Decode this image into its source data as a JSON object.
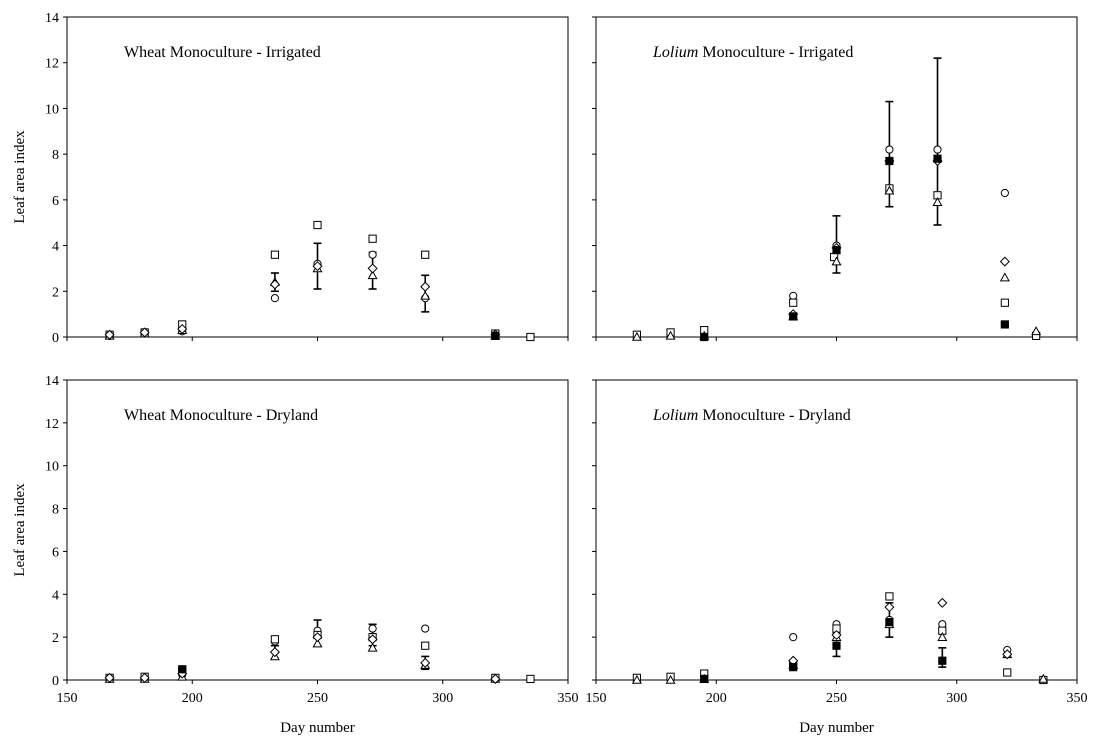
{
  "chart_data": [
    {
      "type": "scatter",
      "title_prefix": "",
      "title_rest": "Wheat Monoculture - Irrigated",
      "ylabel": "Leaf area index",
      "xlabel": "",
      "xlim": [
        150,
        350
      ],
      "ylim": [
        0,
        14
      ],
      "xticks": [
        150,
        200,
        250,
        300,
        350
      ],
      "yticks": [
        0,
        2,
        4,
        6,
        8,
        10,
        12,
        14
      ],
      "show_xticklabels": false,
      "show_yticklabels": true,
      "grid": false,
      "series": [
        {
          "marker": "circle",
          "points": [
            [
              167,
              0.05
            ],
            [
              181,
              0.15
            ],
            [
              196,
              0.25
            ],
            [
              233,
              1.7
            ],
            [
              250,
              3.2
            ],
            [
              272,
              3.6
            ],
            [
              293,
              1.7
            ],
            [
              321,
              0.05
            ]
          ]
        },
        {
          "marker": "square",
          "points": [
            [
              167,
              0.1
            ],
            [
              181,
              0.2
            ],
            [
              196,
              0.55
            ],
            [
              233,
              3.6
            ],
            [
              250,
              4.9
            ],
            [
              272,
              4.3
            ],
            [
              293,
              3.6
            ],
            [
              321,
              0.15
            ],
            [
              335,
              0.0
            ]
          ]
        },
        {
          "marker": "triangle",
          "points": [
            [
              167,
              0.05
            ],
            [
              181,
              0.15
            ],
            [
              196,
              0.3
            ],
            [
              233,
              2.4
            ],
            [
              250,
              3.0
            ],
            [
              272,
              2.7
            ],
            [
              293,
              1.8
            ],
            [
              321,
              0.05
            ]
          ]
        },
        {
          "marker": "diamond",
          "points": [
            [
              167,
              0.1
            ],
            [
              181,
              0.2
            ],
            [
              196,
              0.35
            ],
            [
              233,
              2.3
            ],
            [
              250,
              3.1
            ],
            [
              272,
              3.0
            ],
            [
              293,
              2.2
            ],
            [
              321,
              0.1
            ]
          ]
        },
        {
          "marker": "filled-square",
          "points": [
            [
              321,
              0.05
            ]
          ]
        }
      ],
      "errorbars": [
        {
          "x": 233,
          "low": 2.0,
          "high": 2.8
        },
        {
          "x": 250,
          "low": 2.1,
          "high": 4.1
        },
        {
          "x": 272,
          "low": 2.1,
          "high": 3.7
        },
        {
          "x": 293,
          "low": 1.1,
          "high": 2.7
        }
      ]
    },
    {
      "type": "scatter",
      "title_prefix": "Lolium",
      "title_rest": " Monoculture - Irrigated",
      "ylabel": "",
      "xlabel": "",
      "xlim": [
        150,
        350
      ],
      "ylim": [
        0,
        14
      ],
      "xticks": [
        150,
        200,
        250,
        300,
        350
      ],
      "yticks": [
        0,
        2,
        4,
        6,
        8,
        10,
        12,
        14
      ],
      "show_xticklabels": false,
      "show_yticklabels": false,
      "grid": false,
      "series": [
        {
          "marker": "circle",
          "points": [
            [
              232,
              1.8
            ],
            [
              250,
              4.0
            ],
            [
              272,
              8.2
            ],
            [
              292,
              8.2
            ],
            [
              320,
              6.3
            ]
          ]
        },
        {
          "marker": "square",
          "points": [
            [
              167,
              0.1
            ],
            [
              181,
              0.2
            ],
            [
              195,
              0.3
            ],
            [
              232,
              1.5
            ],
            [
              249,
              3.5
            ],
            [
              272,
              6.5
            ],
            [
              292,
              6.2
            ],
            [
              320,
              1.5
            ],
            [
              333,
              0.05
            ]
          ]
        },
        {
          "marker": "triangle",
          "points": [
            [
              167,
              0.0
            ],
            [
              181,
              0.05
            ],
            [
              195,
              0.05
            ],
            [
              232,
              0.9
            ],
            [
              250,
              3.3
            ],
            [
              272,
              6.4
            ],
            [
              292,
              5.9
            ],
            [
              320,
              2.6
            ],
            [
              333,
              0.25
            ]
          ]
        },
        {
          "marker": "diamond",
          "points": [
            [
              232,
              1.0
            ],
            [
              250,
              3.9
            ],
            [
              272,
              7.7
            ],
            [
              292,
              7.7
            ],
            [
              320,
              3.3
            ]
          ]
        },
        {
          "marker": "filled-square",
          "points": [
            [
              195,
              0.0
            ],
            [
              232,
              0.9
            ],
            [
              250,
              3.8
            ],
            [
              272,
              7.7
            ],
            [
              292,
              7.8
            ],
            [
              320,
              0.55
            ]
          ]
        }
      ],
      "errorbars": [
        {
          "x": 250,
          "low": 2.8,
          "high": 5.3
        },
        {
          "x": 272,
          "low": 5.7,
          "high": 10.3
        },
        {
          "x": 292,
          "low": 4.9,
          "high": 12.2
        },
        {
          "x": 320,
          "low": 0.5,
          "high": 0.6
        }
      ]
    },
    {
      "type": "scatter",
      "title_prefix": "",
      "title_rest": "Wheat Monoculture - Dryland",
      "ylabel": "Leaf area index",
      "xlabel": "Day number",
      "xlim": [
        150,
        350
      ],
      "ylim": [
        0,
        14
      ],
      "xticks": [
        150,
        200,
        250,
        300,
        350
      ],
      "yticks": [
        0,
        2,
        4,
        6,
        8,
        10,
        12,
        14
      ],
      "show_xticklabels": true,
      "show_yticklabels": true,
      "grid": false,
      "series": [
        {
          "marker": "circle",
          "points": [
            [
              167,
              0.05
            ],
            [
              181,
              0.1
            ],
            [
              196,
              0.25
            ],
            [
              233,
              1.8
            ],
            [
              250,
              2.3
            ],
            [
              272,
              2.4
            ],
            [
              293,
              2.4
            ],
            [
              321,
              0.05
            ]
          ]
        },
        {
          "marker": "square",
          "points": [
            [
              167,
              0.1
            ],
            [
              181,
              0.15
            ],
            [
              196,
              0.45
            ],
            [
              233,
              1.9
            ],
            [
              250,
              2.1
            ],
            [
              272,
              2.0
            ],
            [
              293,
              1.6
            ],
            [
              321,
              0.1
            ],
            [
              335,
              0.05
            ]
          ]
        },
        {
          "marker": "triangle",
          "points": [
            [
              167,
              0.05
            ],
            [
              181,
              0.05
            ],
            [
              196,
              0.15
            ],
            [
              233,
              1.1
            ],
            [
              250,
              1.7
            ],
            [
              272,
              1.5
            ],
            [
              293,
              0.7
            ],
            [
              321,
              0.05
            ]
          ]
        },
        {
          "marker": "diamond",
          "points": [
            [
              167,
              0.1
            ],
            [
              181,
              0.1
            ],
            [
              196,
              0.3
            ],
            [
              233,
              1.3
            ],
            [
              250,
              2.0
            ],
            [
              272,
              1.9
            ],
            [
              293,
              0.8
            ],
            [
              321,
              0.05
            ]
          ]
        },
        {
          "marker": "filled-square",
          "points": [
            [
              196,
              0.5
            ]
          ]
        }
      ],
      "errorbars": [
        {
          "x": 233,
          "low": 1.0,
          "high": 1.6
        },
        {
          "x": 250,
          "low": 1.6,
          "high": 2.8
        },
        {
          "x": 272,
          "low": 1.6,
          "high": 2.6
        },
        {
          "x": 293,
          "low": 0.5,
          "high": 1.1
        }
      ]
    },
    {
      "type": "scatter",
      "title_prefix": "Lolium",
      "title_rest": " Monoculture - Dryland",
      "ylabel": "",
      "xlabel": "Day number",
      "xlim": [
        150,
        350
      ],
      "ylim": [
        0,
        14
      ],
      "xticks": [
        150,
        200,
        250,
        300,
        350
      ],
      "yticks": [
        0,
        2,
        4,
        6,
        8,
        10,
        12,
        14
      ],
      "show_xticklabels": true,
      "show_yticklabels": false,
      "grid": false,
      "series": [
        {
          "marker": "circle",
          "points": [
            [
              232,
              2.0
            ],
            [
              250,
              2.6
            ],
            [
              272,
              2.8
            ],
            [
              294,
              2.6
            ],
            [
              321,
              1.4
            ]
          ]
        },
        {
          "marker": "square",
          "points": [
            [
              167,
              0.1
            ],
            [
              181,
              0.15
            ],
            [
              195,
              0.3
            ],
            [
              232,
              0.7
            ],
            [
              250,
              2.4
            ],
            [
              272,
              3.9
            ],
            [
              294,
              2.3
            ],
            [
              321,
              0.35
            ],
            [
              336,
              0.0
            ]
          ]
        },
        {
          "marker": "triangle",
          "points": [
            [
              167,
              0.0
            ],
            [
              181,
              0.0
            ],
            [
              195,
              0.05
            ],
            [
              232,
              0.7
            ],
            [
              250,
              2.0
            ],
            [
              272,
              2.6
            ],
            [
              294,
              2.0
            ],
            [
              321,
              1.2
            ],
            [
              336,
              0.05
            ]
          ]
        },
        {
          "marker": "diamond",
          "points": [
            [
              232,
              0.9
            ],
            [
              250,
              2.1
            ],
            [
              272,
              3.4
            ],
            [
              294,
              3.6
            ],
            [
              321,
              1.2
            ]
          ]
        },
        {
          "marker": "filled-square",
          "points": [
            [
              195,
              0.05
            ],
            [
              232,
              0.6
            ],
            [
              250,
              1.6
            ],
            [
              272,
              2.7
            ],
            [
              294,
              0.9
            ]
          ]
        }
      ],
      "errorbars": [
        {
          "x": 250,
          "low": 1.1,
          "high": 2.2
        },
        {
          "x": 272,
          "low": 2.0,
          "high": 3.6
        },
        {
          "x": 294,
          "low": 0.6,
          "high": 1.5
        }
      ]
    }
  ]
}
